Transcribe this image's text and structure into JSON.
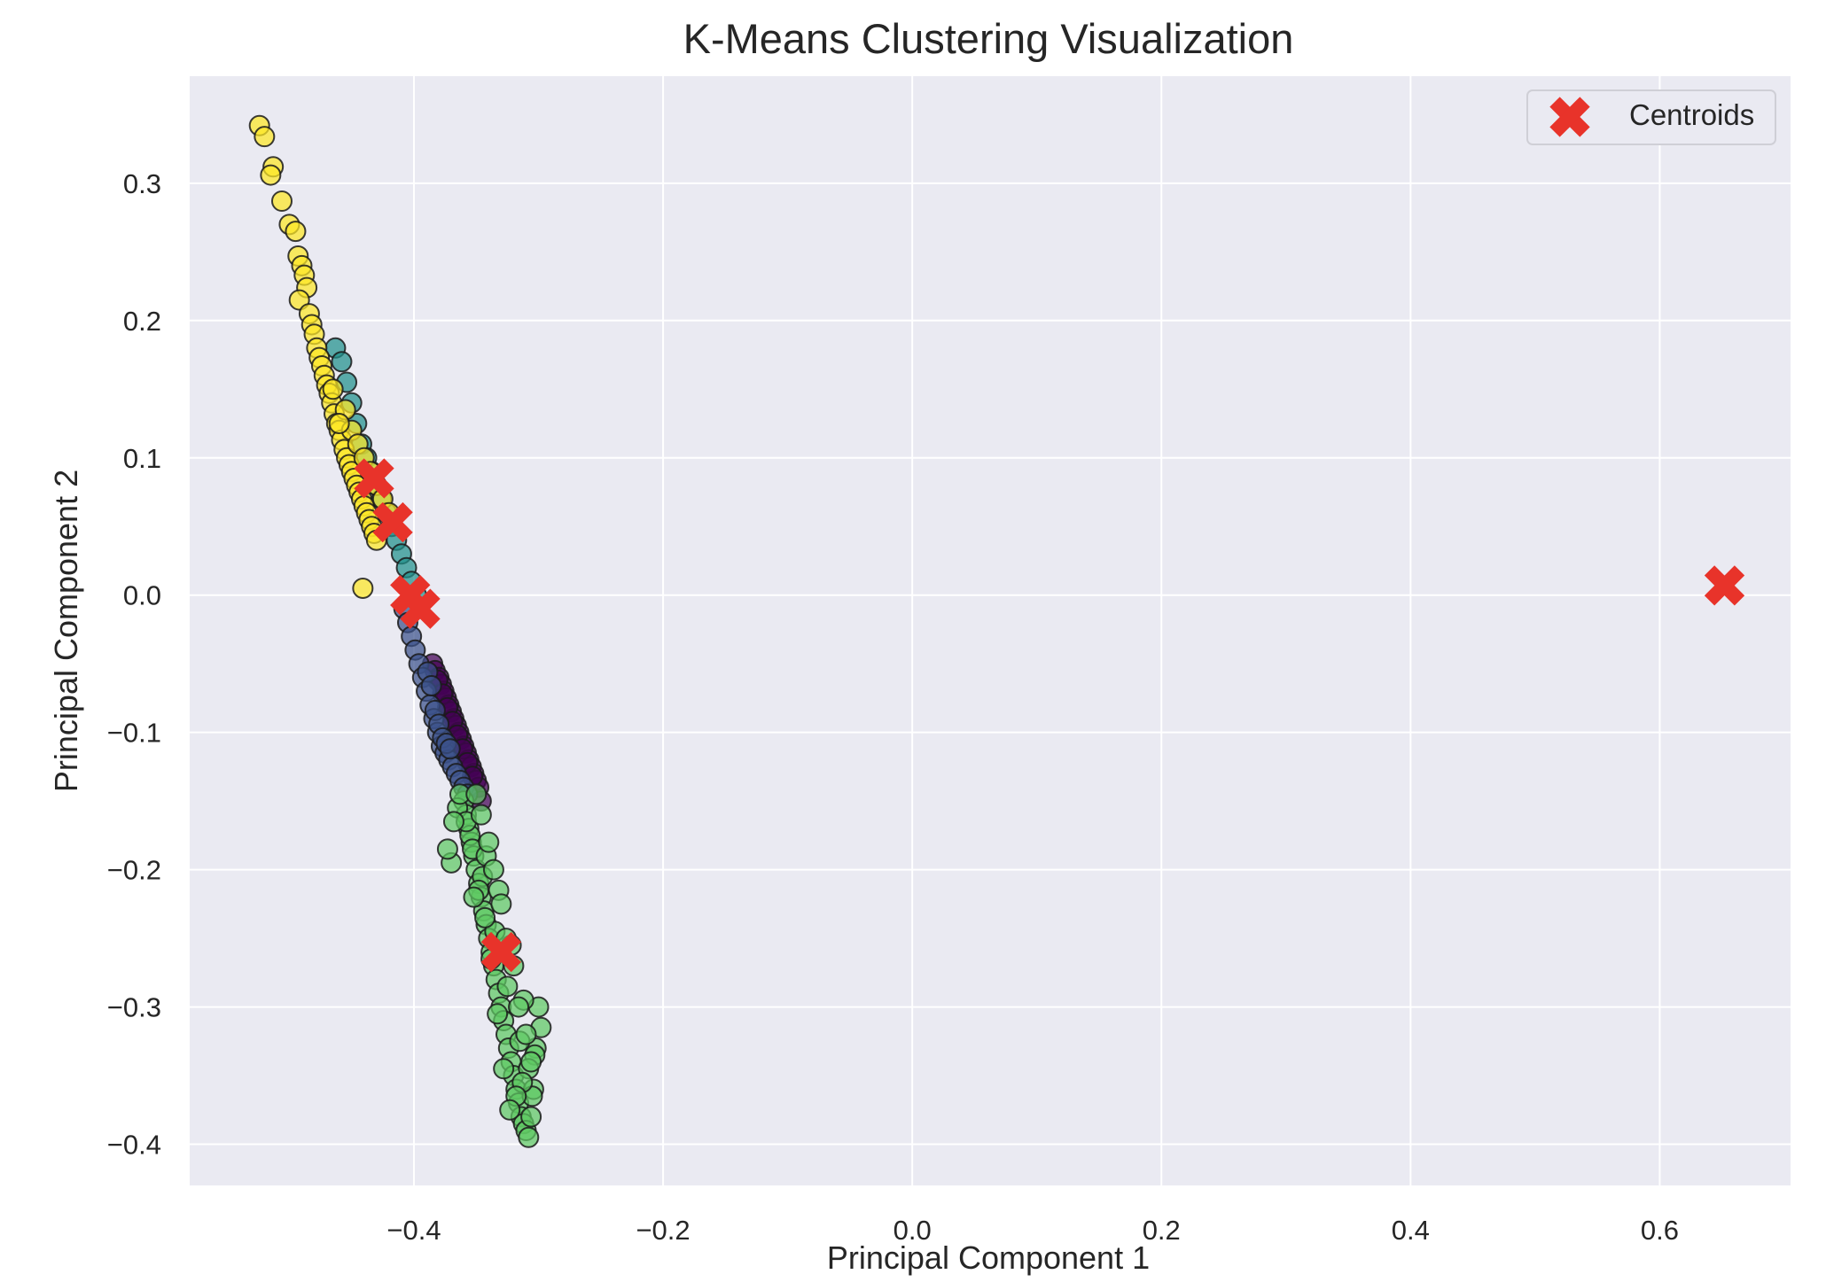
{
  "chart_data": {
    "type": "scatter",
    "title": "K-Means Clustering Visualization",
    "xlabel": "Principal Component 1",
    "ylabel": "Principal Component 2",
    "xlim": [
      -0.58,
      0.705
    ],
    "ylim": [
      -0.43,
      0.378
    ],
    "xticks": [
      -0.4,
      -0.2,
      0.0,
      0.2,
      0.4,
      0.6
    ],
    "yticks": [
      -0.4,
      -0.3,
      -0.2,
      -0.1,
      0.0,
      0.1,
      0.2,
      0.3
    ],
    "grid": true,
    "legend": {
      "placement": "top-right",
      "entries": [
        "Centroids"
      ]
    },
    "colors": {
      "background": "#eaeaf2",
      "grid": "#ffffff",
      "centroid": "#e8332a",
      "point_edge": "#1a1a1a",
      "clusters": [
        "#440154",
        "#3b528b",
        "#21918c",
        "#5ec962",
        "#fde725"
      ]
    },
    "centroids": [
      {
        "x": -0.432,
        "y": 0.085
      },
      {
        "x": -0.417,
        "y": 0.053
      },
      {
        "x": -0.403,
        "y": 0.0
      },
      {
        "x": -0.395,
        "y": -0.01
      },
      {
        "x": -0.33,
        "y": -0.26
      },
      {
        "x": 0.652,
        "y": 0.007
      }
    ],
    "series": [
      {
        "cluster": 0,
        "x": [
          -0.385,
          -0.383,
          -0.38,
          -0.378,
          -0.376,
          -0.374,
          -0.372,
          -0.37,
          -0.368,
          -0.366,
          -0.364,
          -0.362,
          -0.36,
          -0.358,
          -0.356,
          -0.354,
          -0.352,
          -0.35,
          -0.348,
          -0.346,
          -0.381,
          -0.377,
          -0.373,
          -0.369,
          -0.365,
          -0.361,
          -0.357,
          -0.353
        ],
        "y": [
          -0.05,
          -0.055,
          -0.06,
          -0.065,
          -0.07,
          -0.075,
          -0.08,
          -0.085,
          -0.09,
          -0.095,
          -0.1,
          -0.105,
          -0.11,
          -0.115,
          -0.12,
          -0.125,
          -0.13,
          -0.135,
          -0.14,
          -0.15,
          -0.062,
          -0.072,
          -0.082,
          -0.092,
          -0.102,
          -0.112,
          -0.122,
          -0.132
        ]
      },
      {
        "cluster": 1,
        "x": [
          -0.408,
          -0.405,
          -0.402,
          -0.399,
          -0.396,
          -0.393,
          -0.39,
          -0.387,
          -0.384,
          -0.381,
          -0.378,
          -0.375,
          -0.372,
          -0.369,
          -0.366,
          -0.363,
          -0.36,
          -0.357,
          -0.389,
          -0.386,
          -0.383,
          -0.38,
          -0.377,
          -0.374,
          -0.371
        ],
        "y": [
          -0.01,
          -0.02,
          -0.03,
          -0.04,
          -0.05,
          -0.06,
          -0.07,
          -0.08,
          -0.09,
          -0.1,
          -0.11,
          -0.115,
          -0.12,
          -0.125,
          -0.13,
          -0.135,
          -0.14,
          -0.145,
          -0.056,
          -0.066,
          -0.084,
          -0.094,
          -0.104,
          -0.108,
          -0.112
        ]
      },
      {
        "cluster": 2,
        "x": [
          -0.463,
          -0.458,
          -0.454,
          -0.45,
          -0.446,
          -0.442,
          -0.438,
          -0.434,
          -0.43,
          -0.426,
          -0.422,
          -0.418,
          -0.414,
          -0.41,
          -0.406,
          -0.402,
          -0.398
        ],
        "y": [
          0.18,
          0.17,
          0.155,
          0.14,
          0.125,
          0.11,
          0.1,
          0.09,
          0.08,
          0.07,
          0.06,
          0.05,
          0.04,
          0.03,
          0.02,
          0.01,
          0.0
        ]
      },
      {
        "cluster": 3,
        "x": [
          -0.36,
          -0.358,
          -0.356,
          -0.354,
          -0.352,
          -0.35,
          -0.348,
          -0.346,
          -0.344,
          -0.342,
          -0.34,
          -0.338,
          -0.336,
          -0.334,
          -0.332,
          -0.33,
          -0.328,
          -0.326,
          -0.324,
          -0.322,
          -0.32,
          -0.318,
          -0.316,
          -0.314,
          -0.312,
          -0.31,
          -0.308,
          -0.306,
          -0.304,
          -0.302,
          -0.3,
          -0.365,
          -0.37,
          -0.355,
          -0.345,
          -0.335,
          -0.325,
          -0.315,
          -0.305,
          -0.298,
          -0.303,
          -0.308,
          -0.313,
          -0.318,
          -0.323,
          -0.328,
          -0.333,
          -0.338,
          -0.343,
          -0.348,
          -0.353,
          -0.358,
          -0.363,
          -0.368,
          -0.373,
          -0.352,
          -0.342,
          -0.332,
          -0.322,
          -0.312,
          -0.306,
          -0.31,
          -0.316,
          -0.32,
          -0.326,
          -0.33,
          -0.336,
          -0.34,
          -0.346,
          -0.35
        ],
        "y": [
          -0.15,
          -0.16,
          -0.17,
          -0.18,
          -0.19,
          -0.2,
          -0.21,
          -0.22,
          -0.23,
          -0.24,
          -0.25,
          -0.26,
          -0.27,
          -0.28,
          -0.29,
          -0.3,
          -0.31,
          -0.32,
          -0.33,
          -0.34,
          -0.35,
          -0.36,
          -0.37,
          -0.38,
          -0.385,
          -0.39,
          -0.395,
          -0.38,
          -0.36,
          -0.33,
          -0.3,
          -0.155,
          -0.195,
          -0.175,
          -0.205,
          -0.245,
          -0.285,
          -0.325,
          -0.365,
          -0.315,
          -0.335,
          -0.345,
          -0.355,
          -0.365,
          -0.375,
          -0.345,
          -0.305,
          -0.265,
          -0.235,
          -0.215,
          -0.185,
          -0.165,
          -0.145,
          -0.165,
          -0.185,
          -0.22,
          -0.19,
          -0.215,
          -0.255,
          -0.295,
          -0.34,
          -0.32,
          -0.3,
          -0.27,
          -0.25,
          -0.225,
          -0.2,
          -0.18,
          -0.16,
          -0.145
        ]
      },
      {
        "cluster": 4,
        "x": [
          -0.524,
          -0.52,
          -0.513,
          -0.515,
          -0.506,
          -0.5,
          -0.495,
          -0.493,
          -0.49,
          -0.488,
          -0.486,
          -0.492,
          -0.484,
          -0.482,
          -0.48,
          -0.478,
          -0.476,
          -0.474,
          -0.472,
          -0.47,
          -0.468,
          -0.466,
          -0.464,
          -0.462,
          -0.46,
          -0.458,
          -0.456,
          -0.454,
          -0.452,
          -0.45,
          -0.448,
          -0.446,
          -0.444,
          -0.442,
          -0.44,
          -0.438,
          -0.436,
          -0.434,
          -0.432,
          -0.43,
          -0.45,
          -0.455,
          -0.445,
          -0.44,
          -0.435,
          -0.43,
          -0.425,
          -0.42,
          -0.465,
          -0.46,
          -0.441
        ],
        "y": [
          0.342,
          0.334,
          0.312,
          0.306,
          0.287,
          0.27,
          0.265,
          0.247,
          0.24,
          0.233,
          0.224,
          0.215,
          0.205,
          0.197,
          0.19,
          0.18,
          0.173,
          0.167,
          0.16,
          0.153,
          0.147,
          0.14,
          0.132,
          0.125,
          0.12,
          0.113,
          0.106,
          0.1,
          0.095,
          0.09,
          0.085,
          0.08,
          0.075,
          0.07,
          0.065,
          0.06,
          0.055,
          0.05,
          0.045,
          0.04,
          0.12,
          0.135,
          0.11,
          0.1,
          0.09,
          0.08,
          0.07,
          0.06,
          0.15,
          0.125,
          0.005
        ]
      }
    ]
  }
}
